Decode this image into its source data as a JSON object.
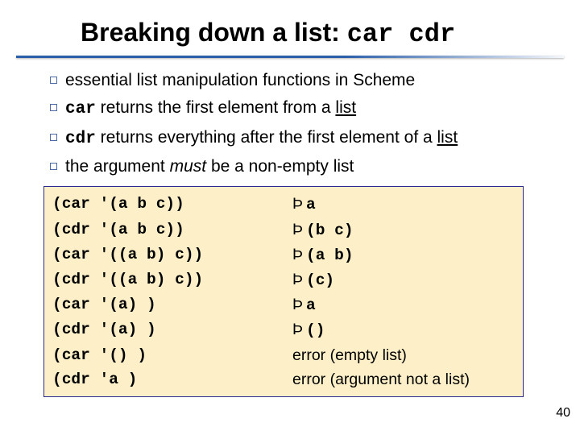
{
  "title": {
    "prefix": "Breaking down a list:  ",
    "mono": "car cdr"
  },
  "bullets": [
    {
      "parts": [
        {
          "t": "essential list manipulation functions in Scheme"
        }
      ]
    },
    {
      "parts": [
        {
          "t": "car",
          "mono": true
        },
        {
          "t": " returns the first element from a "
        },
        {
          "t": "list",
          "u": true
        }
      ]
    },
    {
      "parts": [
        {
          "t": "cdr",
          "mono": true
        },
        {
          "t": " returns everything after the first element of a "
        },
        {
          "t": "list",
          "u": true
        }
      ]
    },
    {
      "parts": [
        {
          "t": "the argument "
        },
        {
          "t": "must",
          "i": true
        },
        {
          "t": " be a non-empty list"
        }
      ]
    }
  ],
  "examples": [
    {
      "expr": "(car '(a b c))",
      "arrow": true,
      "result": "a",
      "mono": true
    },
    {
      "expr": "(cdr '(a b c))",
      "arrow": true,
      "result": "(b c)",
      "mono": true
    },
    {
      "expr": "(car '((a b) c))",
      "arrow": true,
      "result": "(a b)",
      "mono": true
    },
    {
      "expr": "(cdr '((a b) c))",
      "arrow": true,
      "result": "(c)",
      "mono": true
    },
    {
      "expr": "(car '(a) )",
      "arrow": true,
      "result": "a",
      "mono": true
    },
    {
      "expr": "(cdr '(a) )",
      "arrow": true,
      "result": "()",
      "mono": true
    },
    {
      "expr": "(car '() )",
      "arrow": false,
      "result": "error (empty list)",
      "mono": false
    },
    {
      "expr": "(cdr 'a )",
      "arrow": false,
      "result": "error (argument not a list)",
      "mono": false
    }
  ],
  "arrow_glyph": "Þ",
  "page_number": "40",
  "colors": {
    "rule": "#2b5faa",
    "box_bg": "#fdf0c8",
    "box_border": "#2b2b8f",
    "bullet_border": "#4a6aa8"
  }
}
